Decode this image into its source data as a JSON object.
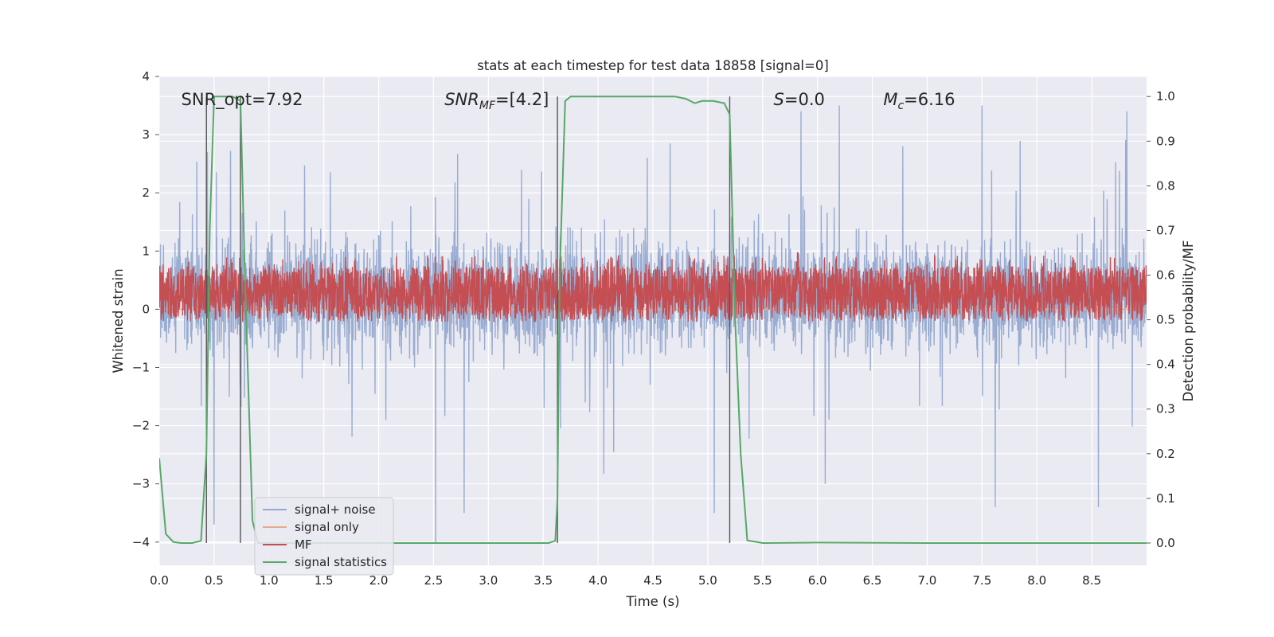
{
  "chart_data": {
    "type": "line",
    "title": "stats at each timestep for test data 18858 [signal=0]",
    "xlabel": "Time (s)",
    "ylabel": "Whitened strain",
    "ylabel_right": "Detection probability/MF",
    "xlim": [
      0,
      9.0
    ],
    "ylim": [
      -4.4,
      4.0
    ],
    "ylim_right": [
      -0.05,
      1.045
    ],
    "x_ticks": [
      "0.0",
      "0.5",
      "1.0",
      "1.5",
      "2.0",
      "2.5",
      "3.0",
      "3.5",
      "4.0",
      "4.5",
      "5.0",
      "5.5",
      "6.0",
      "6.5",
      "7.0",
      "7.5",
      "8.0",
      "8.5"
    ],
    "y_ticks": [
      "4",
      "3",
      "2",
      "1",
      "0",
      "−1",
      "−2",
      "−3",
      "−4"
    ],
    "y_right_ticks": [
      "1.0",
      "0.9",
      "0.8",
      "0.7",
      "0.6",
      "0.5",
      "0.4",
      "0.3",
      "0.2",
      "0.1",
      "0.0"
    ],
    "grid": true,
    "legend_position": "lower-left",
    "colors": {
      "background": "#eaeaf2",
      "grid": "#ffffff",
      "noise": "#95a9cf",
      "signal_only": "#e8a98a",
      "mf": "#c44e52",
      "stats": "#55a868",
      "vline": "#555555"
    },
    "annotations": [
      {
        "label": "SNR_opt=7.92",
        "x": 0.2,
        "y": 3.6
      },
      {
        "label": "SNR",
        "sub": "MF",
        "suffix": "=[4.2]",
        "italic": true,
        "x": 2.6,
        "y": 3.6
      },
      {
        "label": "S",
        "suffix": "=0.0",
        "italic": true,
        "x": 5.6,
        "y": 3.6
      },
      {
        "label": "M",
        "sub": "c",
        "suffix": "=6.16",
        "italic": true,
        "x": 6.6,
        "y": 3.6
      }
    ],
    "vertical_lines": [
      0.43,
      0.74,
      3.63,
      5.2
    ],
    "series": [
      {
        "name": "signal+ noise",
        "axis": "left",
        "kind": "noise",
        "amplitude_envelope": [
          -2.3,
          2.7
        ],
        "peaks": [
          {
            "x": 0.44,
            "y": 2.7
          },
          {
            "x": 0.5,
            "y": -3.7
          },
          {
            "x": 2.52,
            "y": -4.0
          },
          {
            "x": 2.78,
            "y": -3.5
          },
          {
            "x": 5.06,
            "y": -3.5
          },
          {
            "x": 5.85,
            "y": 3.4
          },
          {
            "x": 6.2,
            "y": 3.5
          },
          {
            "x": 7.5,
            "y": 3.5
          },
          {
            "x": 7.62,
            "y": -3.4
          },
          {
            "x": 8.82,
            "y": 3.4
          },
          {
            "x": 8.56,
            "y": -3.4
          },
          {
            "x": 6.07,
            "y": -3.0
          }
        ]
      },
      {
        "name": "signal only",
        "axis": "left",
        "kind": "flat",
        "value": 0.0
      },
      {
        "name": "MF",
        "axis": "right",
        "kind": "band",
        "range": [
          0.5,
          0.62
        ],
        "spikes": [
          {
            "x": 5.82,
            "y": 0.65
          }
        ]
      },
      {
        "name": "signal statistics",
        "axis": "right",
        "kind": "line",
        "x": [
          0.0,
          0.06,
          0.13,
          0.2,
          0.3,
          0.38,
          0.43,
          0.46,
          0.5,
          0.58,
          0.67,
          0.74,
          0.78,
          0.85,
          0.9,
          1.0,
          2.0,
          3.0,
          3.55,
          3.61,
          3.63,
          3.65,
          3.7,
          3.75,
          4.0,
          4.5,
          4.7,
          4.8,
          4.88,
          4.95,
          5.05,
          5.15,
          5.2,
          5.25,
          5.3,
          5.36,
          5.5,
          6.0,
          7.0,
          8.0,
          9.0
        ],
        "y": [
          0.19,
          0.02,
          0.002,
          0.0,
          0.0,
          0.005,
          0.2,
          0.7,
          1.0,
          1.0,
          1.0,
          0.99,
          0.6,
          0.05,
          0.0,
          0.0,
          0.0,
          0.0,
          0.0,
          0.005,
          0.1,
          0.6,
          0.99,
          1.0,
          1.0,
          1.0,
          1.0,
          0.995,
          0.985,
          0.99,
          0.99,
          0.985,
          0.96,
          0.5,
          0.2,
          0.006,
          0.0,
          0.001,
          0.0,
          0.0,
          0.0
        ]
      }
    ]
  }
}
